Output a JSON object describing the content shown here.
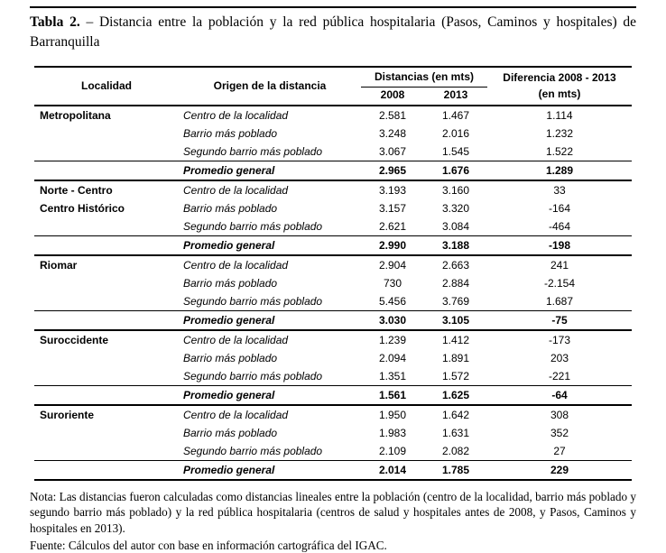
{
  "caption": {
    "label": "Tabla 2.",
    "text": "– Distancia entre la población y la red pública hospitalaria (Pasos, Caminos y hospitales) de Barranquilla"
  },
  "table": {
    "headers": {
      "localidad": "Localidad",
      "origen": "Origen de la distancia",
      "distancias": "Distancias (en mts)",
      "year_2008": "2008",
      "year_2013": "2013",
      "diferencia_line1": "Diferencia 2008 - 2013",
      "diferencia_line2": "(en mts)"
    },
    "groups": [
      {
        "localidad_lines": [
          "Metropolitana"
        ],
        "rows": [
          {
            "origen": "Centro de la localidad",
            "d2008": "2.581",
            "d2013": "1.467",
            "dif": "1.114"
          },
          {
            "origen": "Barrio más poblado",
            "d2008": "3.248",
            "d2013": "2.016",
            "dif": "1.232"
          },
          {
            "origen": "Segundo barrio más poblado",
            "d2008": "3.067",
            "d2013": "1.545",
            "dif": "1.522"
          }
        ],
        "promedio": {
          "origen": "Promedio general",
          "d2008": "2.965",
          "d2013": "1.676",
          "dif": "1.289"
        }
      },
      {
        "localidad_lines": [
          "Norte - Centro",
          "Centro Histórico"
        ],
        "rows": [
          {
            "origen": "Centro de la localidad",
            "d2008": "3.193",
            "d2013": "3.160",
            "dif": "33"
          },
          {
            "origen": "Barrio más poblado",
            "d2008": "3.157",
            "d2013": "3.320",
            "dif": "-164"
          },
          {
            "origen": "Segundo barrio más poblado",
            "d2008": "2.621",
            "d2013": "3.084",
            "dif": "-464"
          }
        ],
        "promedio": {
          "origen": "Promedio general",
          "d2008": "2.990",
          "d2013": "3.188",
          "dif": "-198"
        }
      },
      {
        "localidad_lines": [
          "Riomar"
        ],
        "rows": [
          {
            "origen": "Centro de la localidad",
            "d2008": "2.904",
            "d2013": "2.663",
            "dif": "241"
          },
          {
            "origen": "Barrio más poblado",
            "d2008": "730",
            "d2013": "2.884",
            "dif": "-2.154"
          },
          {
            "origen": "Segundo barrio más poblado",
            "d2008": "5.456",
            "d2013": "3.769",
            "dif": "1.687"
          }
        ],
        "promedio": {
          "origen": "Promedio general",
          "d2008": "3.030",
          "d2013": "3.105",
          "dif": "-75"
        }
      },
      {
        "localidad_lines": [
          "Suroccidente"
        ],
        "rows": [
          {
            "origen": "Centro de la localidad",
            "d2008": "1.239",
            "d2013": "1.412",
            "dif": "-173"
          },
          {
            "origen": "Barrio más poblado",
            "d2008": "2.094",
            "d2013": "1.891",
            "dif": "203"
          },
          {
            "origen": "Segundo barrio más poblado",
            "d2008": "1.351",
            "d2013": "1.572",
            "dif": "-221"
          }
        ],
        "promedio": {
          "origen": "Promedio general",
          "d2008": "1.561",
          "d2013": "1.625",
          "dif": "-64"
        }
      },
      {
        "localidad_lines": [
          "Suroriente"
        ],
        "rows": [
          {
            "origen": "Centro de la localidad",
            "d2008": "1.950",
            "d2013": "1.642",
            "dif": "308"
          },
          {
            "origen": "Barrio más poblado",
            "d2008": "1.983",
            "d2013": "1.631",
            "dif": "352"
          },
          {
            "origen": "Segundo barrio más poblado",
            "d2008": "2.109",
            "d2013": "2.082",
            "dif": "27"
          }
        ],
        "promedio": {
          "origen": "Promedio general",
          "d2008": "2.014",
          "d2013": "1.785",
          "dif": "229"
        }
      }
    ]
  },
  "nota": "Nota: Las distancias fueron calculadas como distancias lineales entre la población (centro de la localidad, barrio más poblado y segundo barrio más poblado) y la red pública hospitalaria (centros de salud y hospitales antes de 2008, y Pasos, Caminos y hospitales en 2013).",
  "fuente": "Fuente: Cálculos del autor con base en información cartográfica del IGAC."
}
